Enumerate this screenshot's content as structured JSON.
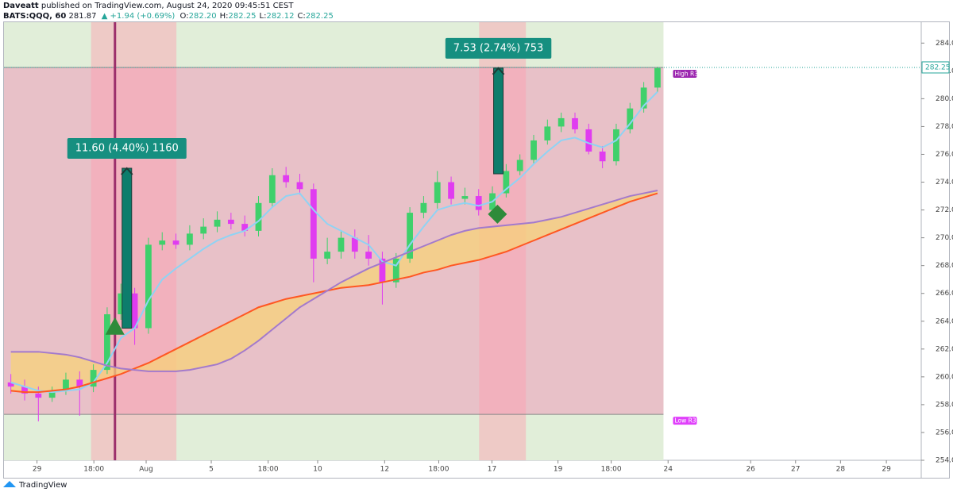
{
  "header": {
    "author": "Daveatt",
    "published": "published on TradingView.com, August 24, 2020 09:45:51 CEST",
    "symbol": "BATS:QQQ, 60",
    "last": "281.87",
    "change": "▲ +1.94 (+0.69%)",
    "ohlc": [
      {
        "label": "O:",
        "value": "282.20"
      },
      {
        "label": "H:",
        "value": "282.25"
      },
      {
        "label": "L:",
        "value": "282.12"
      },
      {
        "label": "C:",
        "value": "282.25"
      }
    ]
  },
  "footer": {
    "brand": "TradingView"
  },
  "chart_data": {
    "type": "candlestick",
    "xlim": [
      0,
      100
    ],
    "ylim": [
      254,
      285.5
    ],
    "xticks": [
      {
        "value": 3.6,
        "label": "29"
      },
      {
        "value": 9.8,
        "label": "18:00"
      },
      {
        "value": 15.5,
        "label": "Aug"
      },
      {
        "value": 22.6,
        "label": "5"
      },
      {
        "value": 28.8,
        "label": "18:00"
      },
      {
        "value": 34.2,
        "label": "10"
      },
      {
        "value": 41.5,
        "label": "12"
      },
      {
        "value": 47.4,
        "label": "18:00"
      },
      {
        "value": 53.2,
        "label": "17"
      },
      {
        "value": 60.4,
        "label": "19"
      },
      {
        "value": 66.2,
        "label": "18:00"
      },
      {
        "value": 72.4,
        "label": "24"
      },
      {
        "value": 81.4,
        "label": "26"
      },
      {
        "value": 86.3,
        "label": "27"
      },
      {
        "value": 91.2,
        "label": "28"
      },
      {
        "value": 96.2,
        "label": "29"
      }
    ],
    "yticks": [
      {
        "value": 254,
        "label": "254.00"
      },
      {
        "value": 256,
        "label": "256.00"
      },
      {
        "value": 258,
        "label": "258.00"
      },
      {
        "value": 260,
        "label": "260.00"
      },
      {
        "value": 262,
        "label": "262.00"
      },
      {
        "value": 264,
        "label": "264.00"
      },
      {
        "value": 266,
        "label": "266.00"
      },
      {
        "value": 268,
        "label": "268.00"
      },
      {
        "value": 270,
        "label": "270.00"
      },
      {
        "value": 272,
        "label": "272.00"
      },
      {
        "value": 274,
        "label": "274.00"
      },
      {
        "value": 276,
        "label": "276.00"
      },
      {
        "value": 278,
        "label": "278.00"
      },
      {
        "value": 280,
        "label": "280.00"
      },
      {
        "value": 282,
        "label": "282.00"
      },
      {
        "value": 284,
        "label": "284.00"
      }
    ],
    "up_color": "#3fd06b",
    "down_color": "#e03cf0",
    "x": [
      0.75,
      2.25,
      3.75,
      5.25,
      6.75,
      8.25,
      9.75,
      11.25,
      12.75,
      14.25,
      15.75,
      17.25,
      18.75,
      20.25,
      21.75,
      23.25,
      24.75,
      26.25,
      27.75,
      29.25,
      30.75,
      32.25,
      33.75,
      35.25,
      36.75,
      38.25,
      39.75,
      41.25,
      42.75,
      44.25,
      45.75,
      47.25,
      48.75,
      50.25,
      51.75,
      53.25,
      54.75,
      56.25,
      57.75,
      59.25,
      60.75,
      62.25,
      63.75,
      65.25,
      66.75,
      68.25,
      69.75,
      71.25
    ],
    "open": [
      259.6,
      259.3,
      258.8,
      258.5,
      259.0,
      259.8,
      259.3,
      260.5,
      264.5,
      266.0,
      263.5,
      269.5,
      269.8,
      269.5,
      270.3,
      270.8,
      271.3,
      271.0,
      270.5,
      272.5,
      274.5,
      274.0,
      273.5,
      268.5,
      269.0,
      270.0,
      269.0,
      268.5,
      266.8,
      268.5,
      271.8,
      272.5,
      274.0,
      272.8,
      273.0,
      272.0,
      273.2,
      274.8,
      275.6,
      277.0,
      278.0,
      278.6,
      277.8,
      276.2,
      275.5,
      277.8,
      279.3,
      280.8
    ],
    "high": [
      260.2,
      259.8,
      259.3,
      259.3,
      260.3,
      260.4,
      260.9,
      265.0,
      266.7,
      266.4,
      270.0,
      270.4,
      270.3,
      270.9,
      271.4,
      271.9,
      271.8,
      271.6,
      273.0,
      275.0,
      275.1,
      274.6,
      273.9,
      270.0,
      270.5,
      270.6,
      270.2,
      269.0,
      268.9,
      272.2,
      273.0,
      274.8,
      274.4,
      273.6,
      273.5,
      273.7,
      275.3,
      276.0,
      277.4,
      278.5,
      279.0,
      279.0,
      278.2,
      276.6,
      278.2,
      279.7,
      281.2,
      282.3
    ],
    "low": [
      258.8,
      258.3,
      256.8,
      258.2,
      258.7,
      257.2,
      258.9,
      260.2,
      264.1,
      262.3,
      263.1,
      269.1,
      269.2,
      269.1,
      269.9,
      270.4,
      270.6,
      270.1,
      270.1,
      272.2,
      273.6,
      273.1,
      266.8,
      268.1,
      268.5,
      268.5,
      268.0,
      265.2,
      266.4,
      268.2,
      271.4,
      272.1,
      272.4,
      272.4,
      271.6,
      271.7,
      272.9,
      274.5,
      275.3,
      276.7,
      277.6,
      277.5,
      276.0,
      275.0,
      275.2,
      277.5,
      279.0,
      280.5
    ],
    "close": [
      259.3,
      258.8,
      258.5,
      259.0,
      259.8,
      259.3,
      260.5,
      264.5,
      266.0,
      263.5,
      269.5,
      269.8,
      269.5,
      270.3,
      270.8,
      271.3,
      271.0,
      270.5,
      272.5,
      274.5,
      274.0,
      273.5,
      268.5,
      269.0,
      270.0,
      269.0,
      268.5,
      266.8,
      268.5,
      271.8,
      272.5,
      274.0,
      272.8,
      273.0,
      272.0,
      273.2,
      274.8,
      275.6,
      277.0,
      278.0,
      278.6,
      277.8,
      276.2,
      275.5,
      277.8,
      279.3,
      280.8,
      282.2
    ],
    "series": [
      {
        "color": "#8fd3f4",
        "values": [
          259.6,
          259.3,
          259.0,
          258.9,
          259.0,
          259.1,
          259.6,
          261.0,
          262.8,
          263.5,
          265.5,
          267.0,
          267.8,
          268.5,
          269.2,
          269.8,
          270.2,
          270.5,
          271.2,
          272.2,
          273.0,
          273.2,
          272.0,
          271.0,
          270.5,
          270.0,
          269.5,
          268.3,
          268.0,
          269.5,
          270.8,
          272.0,
          272.3,
          272.5,
          272.3,
          272.6,
          273.5,
          274.3,
          275.3,
          276.2,
          277.0,
          277.2,
          276.8,
          276.5,
          277.0,
          278.2,
          279.5,
          280.5
        ]
      },
      {
        "color": "#ff5722",
        "values": [
          259.0,
          258.9,
          258.9,
          259.0,
          259.1,
          259.3,
          259.6,
          259.9,
          260.2,
          260.6,
          261.0,
          261.5,
          262.0,
          262.5,
          263.0,
          263.5,
          264.0,
          264.5,
          265.0,
          265.3,
          265.6,
          265.8,
          266.0,
          266.2,
          266.4,
          266.5,
          266.6,
          266.8,
          267.0,
          267.2,
          267.5,
          267.7,
          268.0,
          268.2,
          268.4,
          268.7,
          269.0,
          269.4,
          269.8,
          270.2,
          270.6,
          271.0,
          271.4,
          271.8,
          272.2,
          272.6,
          272.9,
          273.2
        ]
      },
      {
        "color": "#a37acc",
        "values": [
          261.8,
          261.8,
          261.8,
          261.7,
          261.6,
          261.4,
          261.1,
          260.8,
          260.6,
          260.5,
          260.4,
          260.4,
          260.4,
          260.5,
          260.7,
          260.9,
          261.3,
          261.9,
          262.6,
          263.4,
          264.2,
          265.0,
          265.6,
          266.2,
          266.8,
          267.3,
          267.8,
          268.2,
          268.6,
          269.0,
          269.4,
          269.8,
          270.2,
          270.5,
          270.7,
          270.8,
          270.9,
          271.0,
          271.1,
          271.3,
          271.5,
          271.8,
          272.1,
          272.4,
          272.7,
          273.0,
          273.2,
          273.4
        ]
      }
    ],
    "cloud_color": "#f7d27a",
    "session_end": 71.9,
    "highlight_ranges": [
      [
        9.5,
        18.8
      ],
      [
        51.8,
        56.9
      ]
    ],
    "vertical_line": 12.1,
    "levels": [
      {
        "label": "High R3",
        "value": 282.25,
        "color": "#9c27b0"
      },
      {
        "label": "Low R3",
        "value": 257.3,
        "color": "#e040fb"
      }
    ],
    "last_price": {
      "value": 282.25,
      "label": "282.25"
    },
    "trades": [
      {
        "text": "11.60 (4.40%) 1160",
        "x": 13.4,
        "from": 263.5,
        "to": 275.0,
        "marker": "triangle",
        "marker_x": 12.1,
        "marker_value": 263.6
      },
      {
        "text": "7.53 (2.74%) 753",
        "x": 53.9,
        "from": 274.6,
        "to": 282.2,
        "marker": "diamond",
        "marker_x": 53.8,
        "marker_value": 271.7
      }
    ]
  }
}
